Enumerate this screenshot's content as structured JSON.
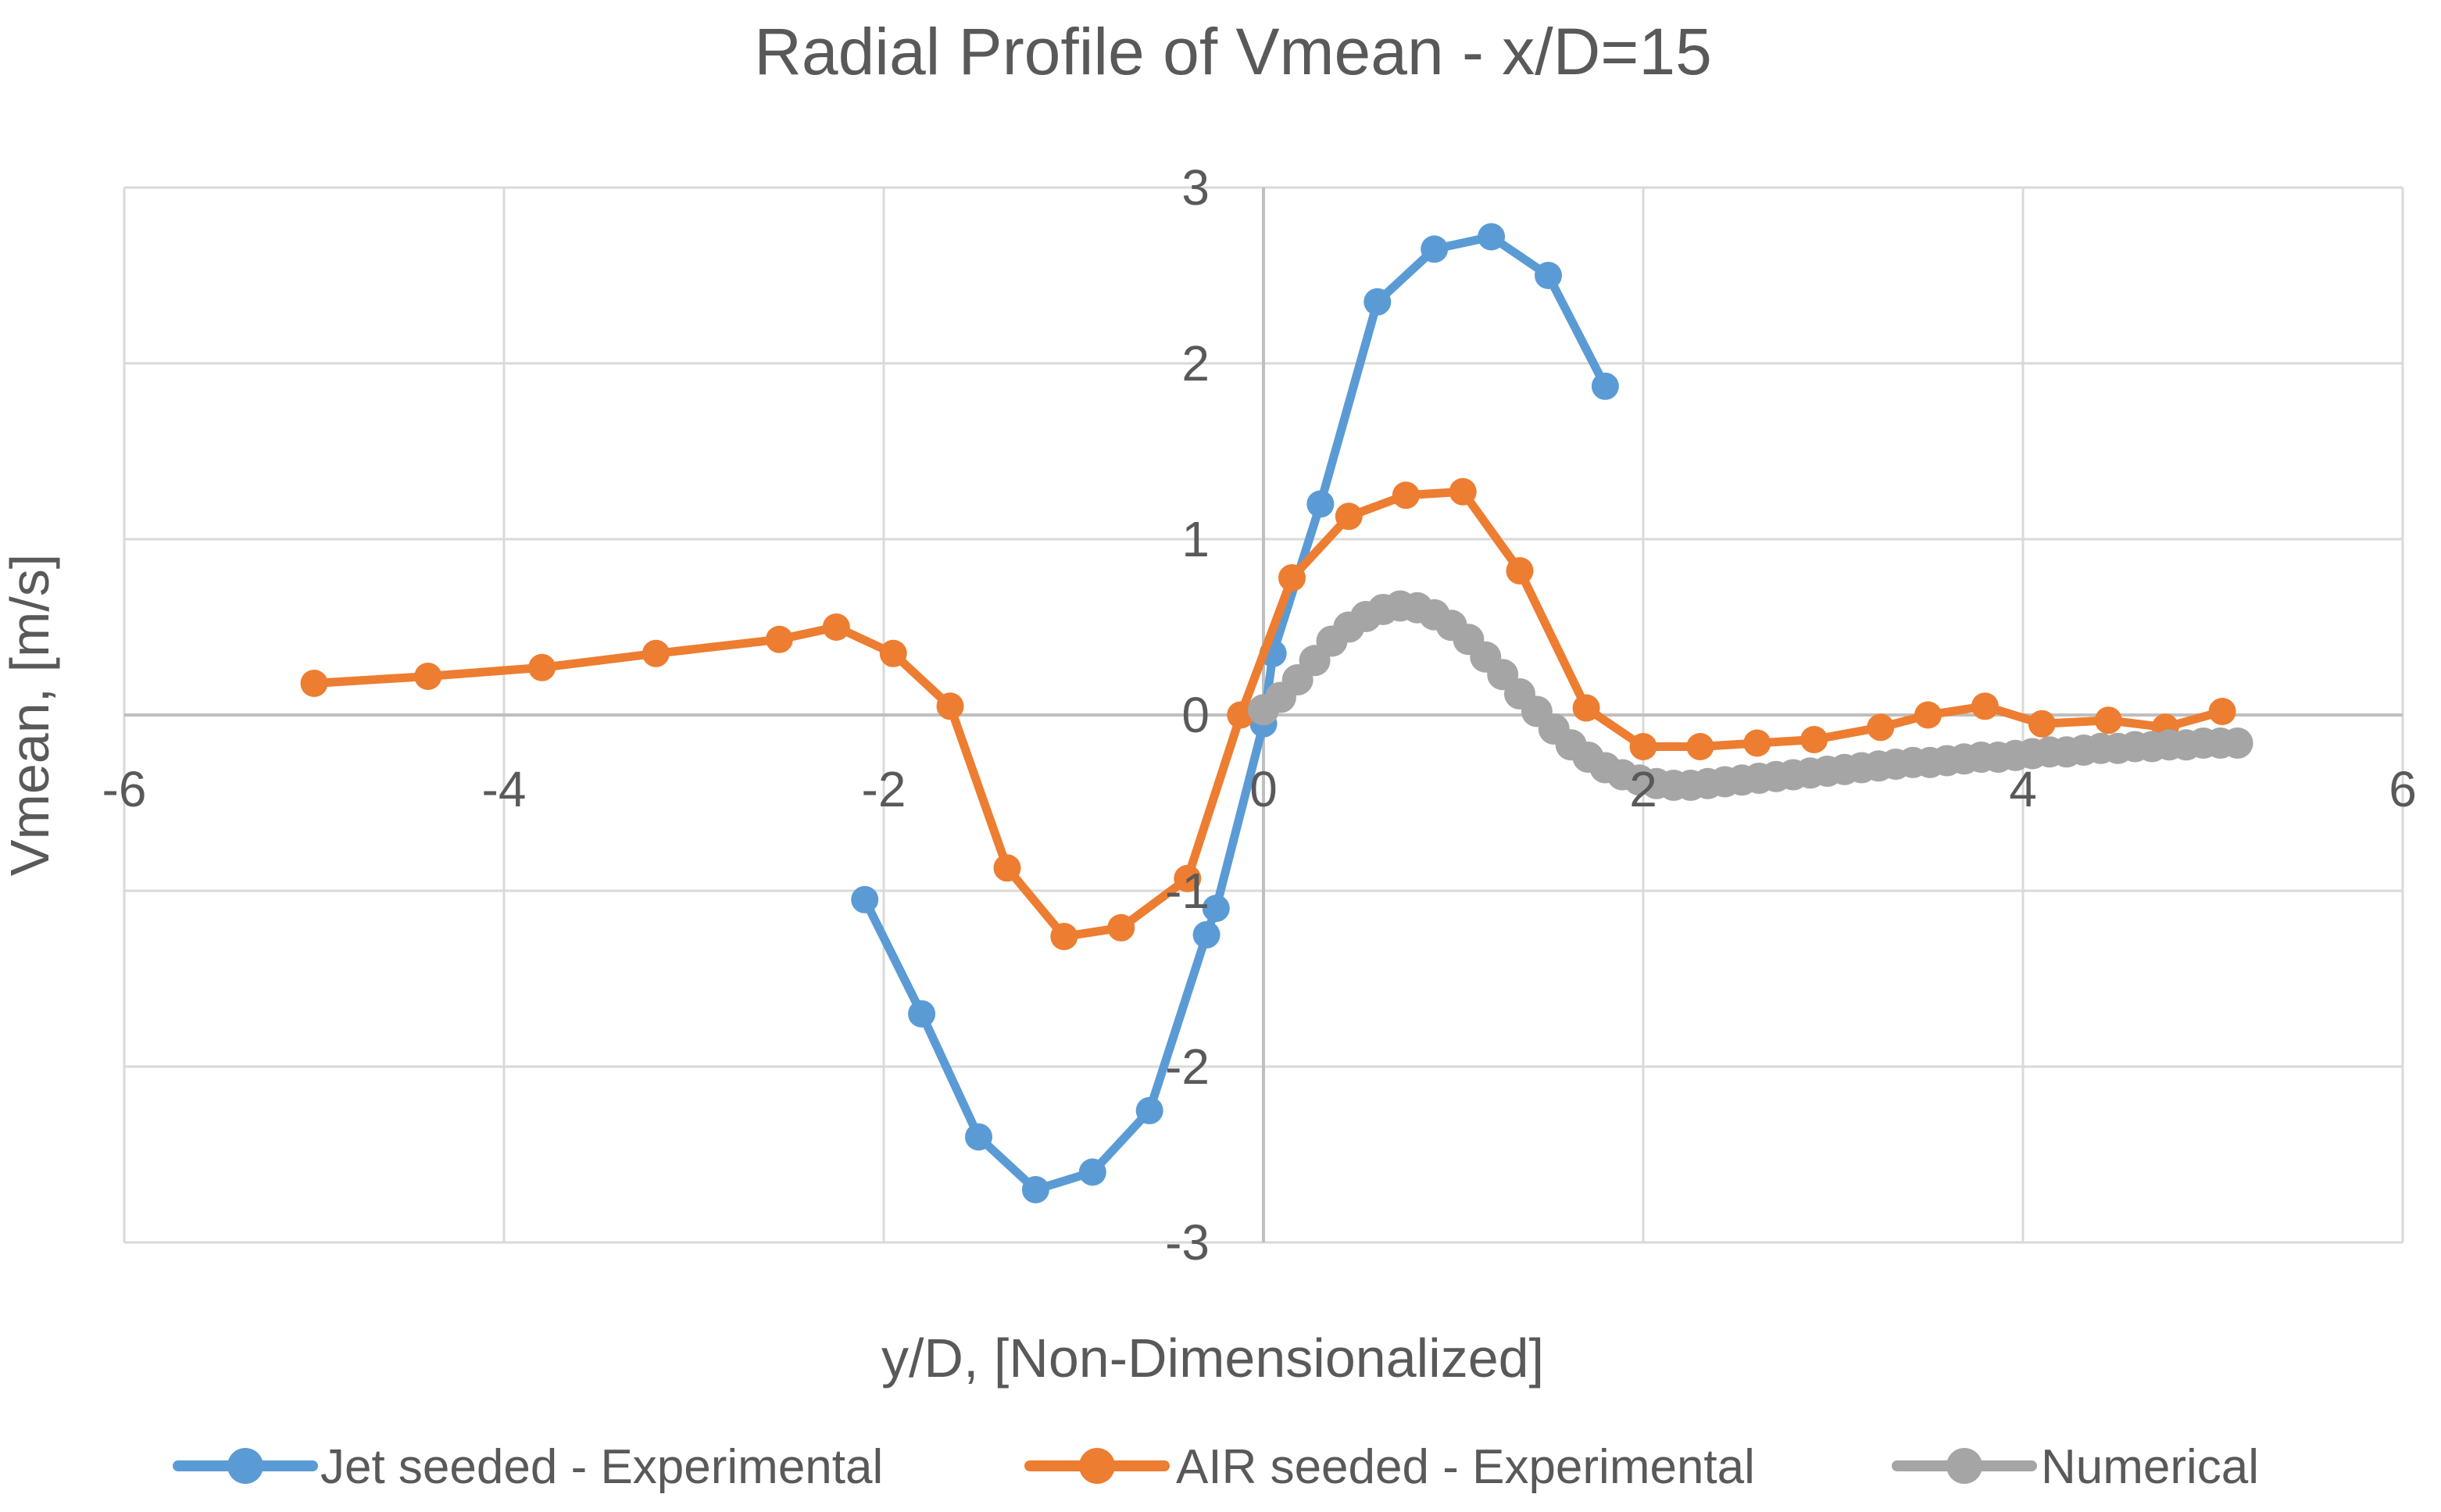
{
  "title": "Radial Profile of Vmean - x/D=15",
  "chart_data": {
    "type": "line",
    "title": "Radial Profile of Vmean - x/D=15",
    "xlabel": "y/D, [Non-Dimensionalized]",
    "ylabel": "Vmean, [m/s]",
    "xlim": [
      -6,
      6
    ],
    "ylim": [
      -3,
      3
    ],
    "x_ticks": [
      "-6",
      "-4",
      "-2",
      "0",
      "2",
      "4",
      "6"
    ],
    "y_ticks": [
      "3",
      "2",
      "1",
      "0",
      "-1",
      "-2",
      "-3"
    ],
    "grid": true,
    "legend_position": "bottom",
    "colors": {
      "blue": "#5B9BD5",
      "orange": "#ED7D31",
      "gray": "#A5A5A5",
      "text": "#595959",
      "gridline": "#D9D9D9",
      "axisline": "#BFBFBF",
      "background": "#FFFFFF"
    },
    "series": [
      {
        "name": "Jet seeded - Experimental",
        "color": "#5B9BD5",
        "marker": "circle",
        "points": [
          [
            -2.1,
            -1.05
          ],
          [
            -1.8,
            -1.7
          ],
          [
            -1.5,
            -2.4
          ],
          [
            -1.2,
            -2.7
          ],
          [
            -0.9,
            -2.6
          ],
          [
            -0.6,
            -2.25
          ],
          [
            -0.3,
            -1.25
          ],
          [
            -0.25,
            -1.1
          ],
          [
            0.0,
            -0.05
          ],
          [
            0.05,
            0.35
          ],
          [
            0.3,
            1.2
          ],
          [
            0.6,
            2.35
          ],
          [
            0.9,
            2.65
          ],
          [
            1.2,
            2.72
          ],
          [
            1.5,
            2.5
          ],
          [
            1.8,
            1.87
          ]
        ]
      },
      {
        "name": "AIR seeded - Experimental",
        "color": "#ED7D31",
        "marker": "circle",
        "points": [
          [
            -5.0,
            0.18
          ],
          [
            -4.4,
            0.22
          ],
          [
            -3.8,
            0.27
          ],
          [
            -3.2,
            0.35
          ],
          [
            -2.55,
            0.43
          ],
          [
            -2.25,
            0.5
          ],
          [
            -1.95,
            0.35
          ],
          [
            -1.65,
            0.05
          ],
          [
            -1.35,
            -0.87
          ],
          [
            -1.05,
            -1.26
          ],
          [
            -0.75,
            -1.21
          ],
          [
            -0.4,
            -0.93
          ],
          [
            -0.12,
            0.0
          ],
          [
            0.15,
            0.78
          ],
          [
            0.45,
            1.13
          ],
          [
            0.75,
            1.25
          ],
          [
            1.05,
            1.27
          ],
          [
            1.35,
            0.82
          ],
          [
            1.7,
            0.04
          ],
          [
            2.0,
            -0.18
          ],
          [
            2.3,
            -0.18
          ],
          [
            2.6,
            -0.16
          ],
          [
            2.9,
            -0.14
          ],
          [
            3.25,
            -0.07
          ],
          [
            3.5,
            0.0
          ],
          [
            3.8,
            0.05
          ],
          [
            4.1,
            -0.05
          ],
          [
            4.45,
            -0.03
          ],
          [
            4.75,
            -0.07
          ],
          [
            5.05,
            0.02
          ]
        ]
      },
      {
        "name": "Numerical",
        "color": "#A5A5A5",
        "marker": "dense-circles",
        "points": [
          [
            0.0,
            0.03
          ],
          [
            0.09,
            0.1
          ],
          [
            0.18,
            0.2
          ],
          [
            0.27,
            0.31
          ],
          [
            0.36,
            0.42
          ],
          [
            0.45,
            0.5
          ],
          [
            0.54,
            0.56
          ],
          [
            0.63,
            0.6
          ],
          [
            0.72,
            0.62
          ],
          [
            0.81,
            0.61
          ],
          [
            0.9,
            0.57
          ],
          [
            0.99,
            0.51
          ],
          [
            1.08,
            0.43
          ],
          [
            1.17,
            0.33
          ],
          [
            1.26,
            0.23
          ],
          [
            1.35,
            0.12
          ],
          [
            1.44,
            0.02
          ],
          [
            1.53,
            -0.08
          ],
          [
            1.62,
            -0.17
          ],
          [
            1.71,
            -0.24
          ],
          [
            1.8,
            -0.3
          ],
          [
            1.89,
            -0.34
          ],
          [
            1.98,
            -0.37
          ],
          [
            2.07,
            -0.39
          ],
          [
            2.16,
            -0.4
          ],
          [
            2.25,
            -0.4
          ],
          [
            2.34,
            -0.39
          ],
          [
            2.43,
            -0.38
          ],
          [
            2.52,
            -0.37
          ],
          [
            2.61,
            -0.36
          ],
          [
            2.7,
            -0.35
          ],
          [
            2.79,
            -0.34
          ],
          [
            2.88,
            -0.33
          ],
          [
            2.97,
            -0.32
          ],
          [
            3.06,
            -0.31
          ],
          [
            3.15,
            -0.3
          ],
          [
            3.24,
            -0.29
          ],
          [
            3.33,
            -0.28
          ],
          [
            3.42,
            -0.27
          ],
          [
            3.51,
            -0.27
          ],
          [
            3.6,
            -0.26
          ],
          [
            3.69,
            -0.25
          ],
          [
            3.78,
            -0.24
          ],
          [
            3.87,
            -0.24
          ],
          [
            3.96,
            -0.23
          ],
          [
            4.05,
            -0.22
          ],
          [
            4.14,
            -0.21
          ],
          [
            4.23,
            -0.21
          ],
          [
            4.32,
            -0.2
          ],
          [
            4.41,
            -0.19
          ],
          [
            4.5,
            -0.19
          ],
          [
            4.59,
            -0.18
          ],
          [
            4.68,
            -0.18
          ],
          [
            4.77,
            -0.17
          ],
          [
            4.86,
            -0.17
          ],
          [
            4.95,
            -0.16
          ],
          [
            5.04,
            -0.16
          ],
          [
            5.13,
            -0.16
          ]
        ]
      }
    ],
    "legend": [
      {
        "label": "Jet seeded - Experimental",
        "color": "#5B9BD5"
      },
      {
        "label": "AIR seeded - Experimental",
        "color": "#ED7D31"
      },
      {
        "label": "Numerical",
        "color": "#A5A5A5"
      }
    ]
  }
}
